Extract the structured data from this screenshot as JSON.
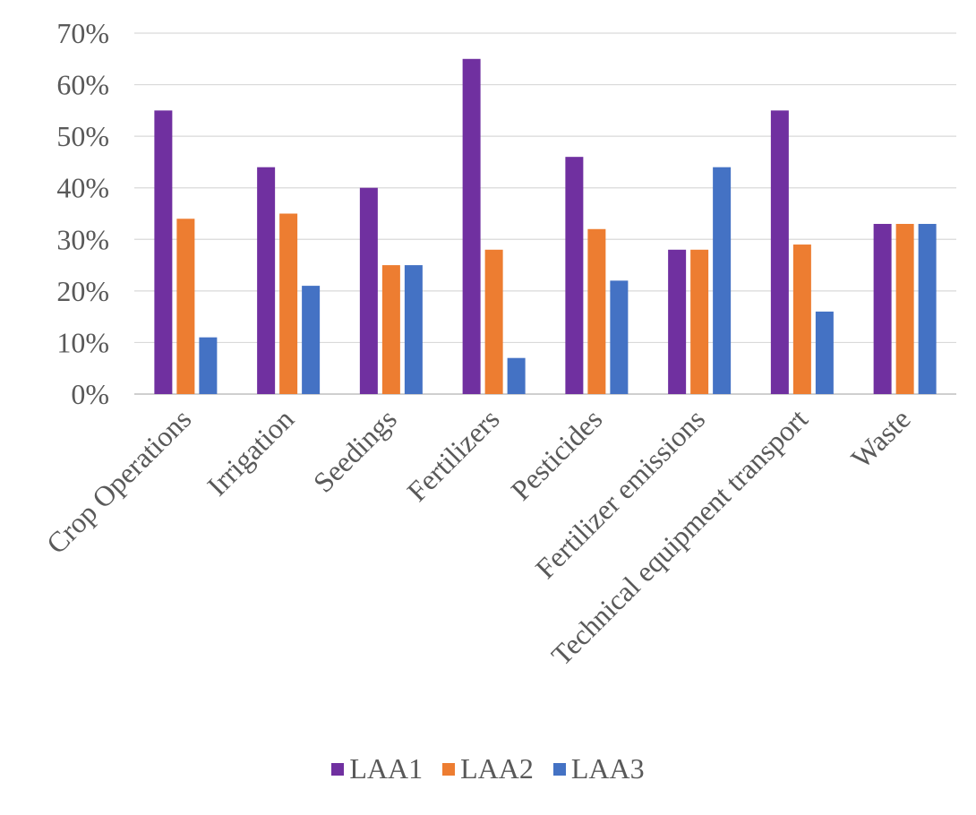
{
  "chart_data": {
    "type": "bar",
    "title": "",
    "xlabel": "",
    "ylabel": "",
    "ylim": [
      0,
      70
    ],
    "yticks": [
      0,
      10,
      20,
      30,
      40,
      50,
      60,
      70
    ],
    "ytick_suffix": "%",
    "grid": true,
    "legend_position": "bottom-center",
    "categories": [
      "Crop Operations",
      "Irrigation",
      "Seedings",
      "Fertilizers",
      "Pesticides",
      "Fertilizer emissions",
      "Technical equipment transport",
      "Waste"
    ],
    "series": [
      {
        "name": "LAA1",
        "color": "#7030A0",
        "values": [
          55,
          44,
          40,
          65,
          46,
          28,
          55,
          33
        ]
      },
      {
        "name": "LAA2",
        "color": "#ED7D31",
        "values": [
          34,
          35,
          25,
          28,
          32,
          28,
          29,
          33
        ]
      },
      {
        "name": "LAA3",
        "color": "#4472C4",
        "values": [
          11,
          21,
          25,
          7,
          22,
          44,
          16,
          33
        ]
      }
    ]
  }
}
